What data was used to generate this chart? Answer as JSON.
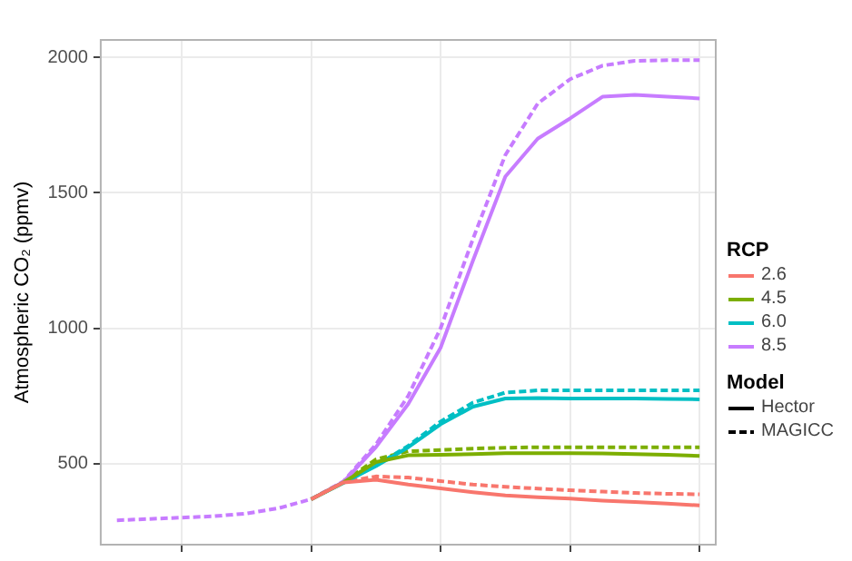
{
  "chart_data": {
    "type": "line",
    "ylabel": "Atmospheric CO₂ (ppmv)",
    "legend_title": "RCP",
    "annotations": [
      "Model"
    ],
    "categories": [
      null,
      null,
      null,
      null,
      null,
      null,
      null,
      null,
      null,
      null,
      null,
      null,
      null,
      null,
      null,
      null,
      null,
      null,
      null
    ],
    "ylim": [
      200,
      2065
    ],
    "yticks": [
      500,
      1000,
      1500,
      2000
    ],
    "tick_labels": "y",
    "grid": true,
    "legend": "right",
    "marker": "none",
    "series": [
      {
        "name": "2.6",
        "color": "#f8766d",
        "line_style": "solid",
        "values": [
          null,
          null,
          null,
          null,
          null,
          null,
          368,
          430,
          440,
          422,
          408,
          394,
          382,
          375,
          370,
          363,
          358,
          352,
          345
        ]
      },
      {
        "name": "4.5",
        "color": "#7cae00",
        "line_style": "solid",
        "values": [
          null,
          null,
          null,
          null,
          null,
          null,
          368,
          430,
          505,
          530,
          532,
          535,
          538,
          538,
          538,
          537,
          535,
          532,
          528
        ]
      },
      {
        "name": "6.0",
        "color": "#00bfc4",
        "line_style": "solid",
        "values": [
          null,
          null,
          null,
          null,
          null,
          null,
          368,
          428,
          490,
          560,
          645,
          710,
          740,
          742,
          740,
          740,
          740,
          738,
          737
        ]
      },
      {
        "name": "8.5",
        "color": "#c77cff",
        "line_style": "solid",
        "values": [
          null,
          null,
          null,
          null,
          null,
          null,
          368,
          432,
          560,
          720,
          928,
          1250,
          1560,
          1700,
          1775,
          1855,
          1862,
          1855,
          1849
        ]
      },
      {
        "color": "#f8766d",
        "line_style": "dashed",
        "values": [
          null,
          null,
          null,
          null,
          null,
          null,
          368,
          432,
          452,
          448,
          435,
          422,
          414,
          407,
          401,
          396,
          391,
          388,
          386
        ]
      },
      {
        "color": "#7cae00",
        "line_style": "dashed",
        "values": [
          null,
          null,
          null,
          null,
          null,
          null,
          null,
          432,
          515,
          545,
          550,
          555,
          558,
          560,
          560,
          560,
          560,
          560,
          560
        ]
      },
      {
        "color": "#00bfc4",
        "line_style": "dashed",
        "values": [
          null,
          null,
          null,
          null,
          null,
          null,
          null,
          null,
          492,
          565,
          655,
          725,
          762,
          770,
          770,
          770,
          770,
          770,
          770
        ]
      },
      {
        "color": "#c77cff",
        "line_style": "dashed",
        "values": [
          290,
          295,
          300,
          305,
          315,
          335,
          368,
          434,
          570,
          750,
          1000,
          1330,
          1640,
          1830,
          1920,
          1970,
          1988,
          1990,
          1990
        ]
      },
      {
        "name": "Hector",
        "color": "#000000",
        "line_style": "solid",
        "values": [
          null,
          null,
          null,
          null,
          null,
          null,
          null,
          null,
          null,
          null,
          null,
          null,
          null,
          null,
          null,
          null,
          null,
          null,
          null
        ]
      },
      {
        "name": "MAGICC",
        "color": "#000000",
        "line_style": "dashed",
        "values": [
          null,
          null,
          null,
          null,
          null,
          null,
          null,
          null,
          null,
          null,
          null,
          null,
          null,
          null,
          null,
          null,
          null,
          null,
          null
        ]
      }
    ]
  }
}
